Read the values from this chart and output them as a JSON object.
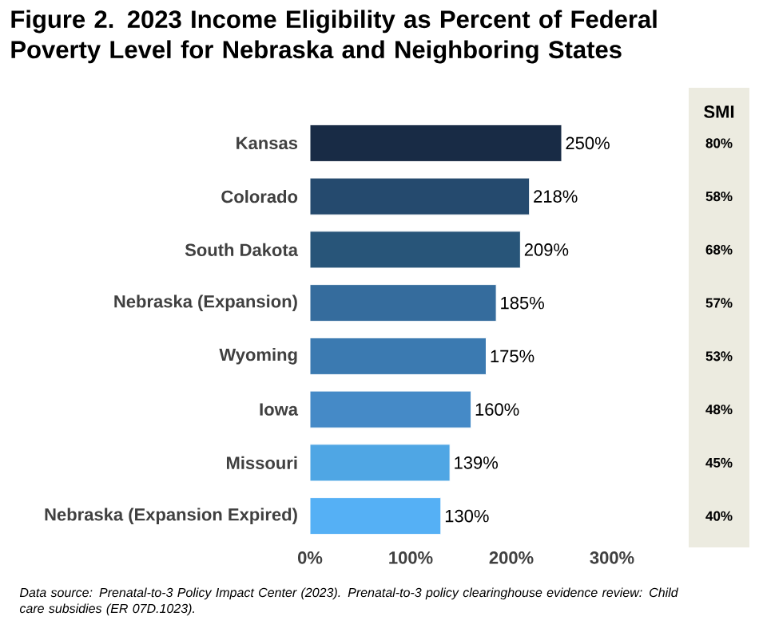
{
  "chart_data": {
    "type": "bar",
    "orientation": "horizontal",
    "title": "Figure 2. 2023 Income Eligibility as Percent of Federal Poverty Level for Nebraska and Neighboring States",
    "categories": [
      "Kansas",
      "Colorado",
      "South Dakota",
      "Nebraska (Expansion)",
      "Wyoming",
      "Iowa",
      "Missouri",
      "Nebraska (Expansion Expired)"
    ],
    "values": [
      250,
      218,
      209,
      185,
      175,
      160,
      139,
      130
    ],
    "value_labels": [
      "250%",
      "218%",
      "209%",
      "185%",
      "175%",
      "160%",
      "139%",
      "130%"
    ],
    "colors": [
      "#182b45",
      "#254a6e",
      "#285579",
      "#356c9d",
      "#3b7ab1",
      "#458ac7",
      "#4fa6e4",
      "#55b0f5"
    ],
    "xlim": [
      0,
      300
    ],
    "xticks": [
      {
        "value": 0,
        "label": "0%"
      },
      {
        "value": 100,
        "label": "100%"
      },
      {
        "value": 200,
        "label": "200%"
      },
      {
        "value": 300,
        "label": "300%"
      }
    ],
    "annotations": [
      "SMI",
      "80%",
      "58%",
      "68%",
      "57%",
      "53%",
      "48%",
      "45%",
      "40%",
      "Data source: Prenatal-to-3 Policy Impact Center (2023). Prenatal-to-3 policy clearinghouse evidence review: Child care subsidies (ER 07D.1023)."
    ]
  }
}
